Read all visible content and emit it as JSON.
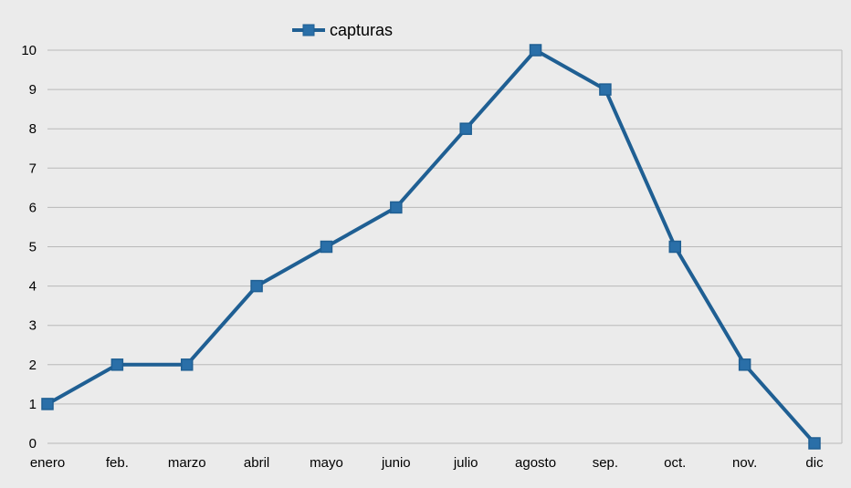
{
  "chart_data": {
    "type": "line",
    "categories": [
      "enero",
      "feb.",
      "marzo",
      "abril",
      "mayo",
      "junio",
      "julio",
      "agosto",
      "sep.",
      "oct.",
      "nov.",
      "dic"
    ],
    "series": [
      {
        "name": "capturas",
        "values": [
          1,
          2,
          2,
          4,
          5,
          6,
          8,
          10,
          9,
          5,
          2,
          0
        ]
      }
    ],
    "title": "",
    "xlabel": "",
    "ylabel": "",
    "ylim": [
      0,
      10
    ],
    "yticks": [
      0,
      1,
      2,
      3,
      4,
      5,
      6,
      7,
      8,
      9,
      10
    ],
    "grid": true,
    "legend_position": "top",
    "colors": {
      "line": "#1f5f93",
      "marker": "#2a6fa8",
      "grid": "#b9b9b9",
      "background": "#ebebeb"
    }
  }
}
